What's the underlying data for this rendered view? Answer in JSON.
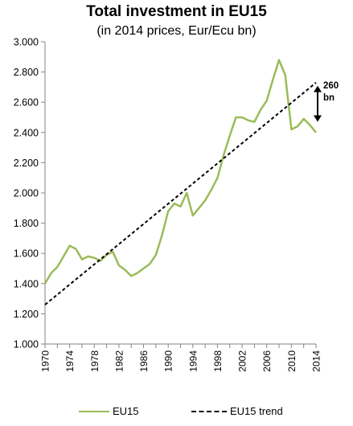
{
  "chart_data": {
    "type": "line",
    "title": "Total investment in EU15",
    "subtitle": "(in 2014 prices, Eur/Ecu bn)",
    "xlabel": "",
    "ylabel": "",
    "xlim": [
      1970,
      2014
    ],
    "ylim": [
      1.0,
      3.0
    ],
    "grid": false,
    "legend_position": "bottom",
    "x_ticks": [
      1970,
      1974,
      1978,
      1982,
      1986,
      1990,
      1994,
      1998,
      2002,
      2006,
      2010,
      2014
    ],
    "y_ticks": [
      1.0,
      1.2,
      1.4,
      1.6,
      1.8,
      2.0,
      2.2,
      2.4,
      2.6,
      2.8,
      3.0
    ],
    "y_tick_labels": [
      "1.000",
      "1.200",
      "1.400",
      "1.600",
      "1.800",
      "2.000",
      "2.200",
      "2.400",
      "2.600",
      "2.800",
      "3.000"
    ],
    "series": [
      {
        "name": "EU15",
        "color": "#9bbb59",
        "style": "solid",
        "x": [
          1970,
          1971,
          1972,
          1973,
          1974,
          1975,
          1976,
          1977,
          1978,
          1979,
          1980,
          1981,
          1982,
          1983,
          1984,
          1985,
          1986,
          1987,
          1988,
          1989,
          1990,
          1991,
          1992,
          1993,
          1994,
          1995,
          1996,
          1997,
          1998,
          1999,
          2000,
          2001,
          2002,
          2003,
          2004,
          2005,
          2006,
          2007,
          2008,
          2009,
          2010,
          2011,
          2012,
          2013,
          2014
        ],
        "values": [
          1.4,
          1.47,
          1.51,
          1.58,
          1.65,
          1.63,
          1.56,
          1.58,
          1.57,
          1.55,
          1.59,
          1.61,
          1.52,
          1.49,
          1.45,
          1.47,
          1.5,
          1.53,
          1.59,
          1.72,
          1.88,
          1.93,
          1.91,
          2.0,
          1.85,
          1.9,
          1.95,
          2.02,
          2.1,
          2.25,
          2.38,
          2.5,
          2.5,
          2.48,
          2.47,
          2.55,
          2.61,
          2.75,
          2.88,
          2.78,
          2.42,
          2.44,
          2.49,
          2.45,
          2.4
        ]
      },
      {
        "name": "EU15 trend",
        "color": "#000000",
        "style": "dashed",
        "x": [
          1970,
          2014
        ],
        "values": [
          1.26,
          2.73
        ]
      }
    ],
    "annotation": {
      "label_line1": "260",
      "label_line2": "bn",
      "arrow_x": 2014,
      "arrow_from": 2.46,
      "arrow_to": 2.72
    }
  }
}
